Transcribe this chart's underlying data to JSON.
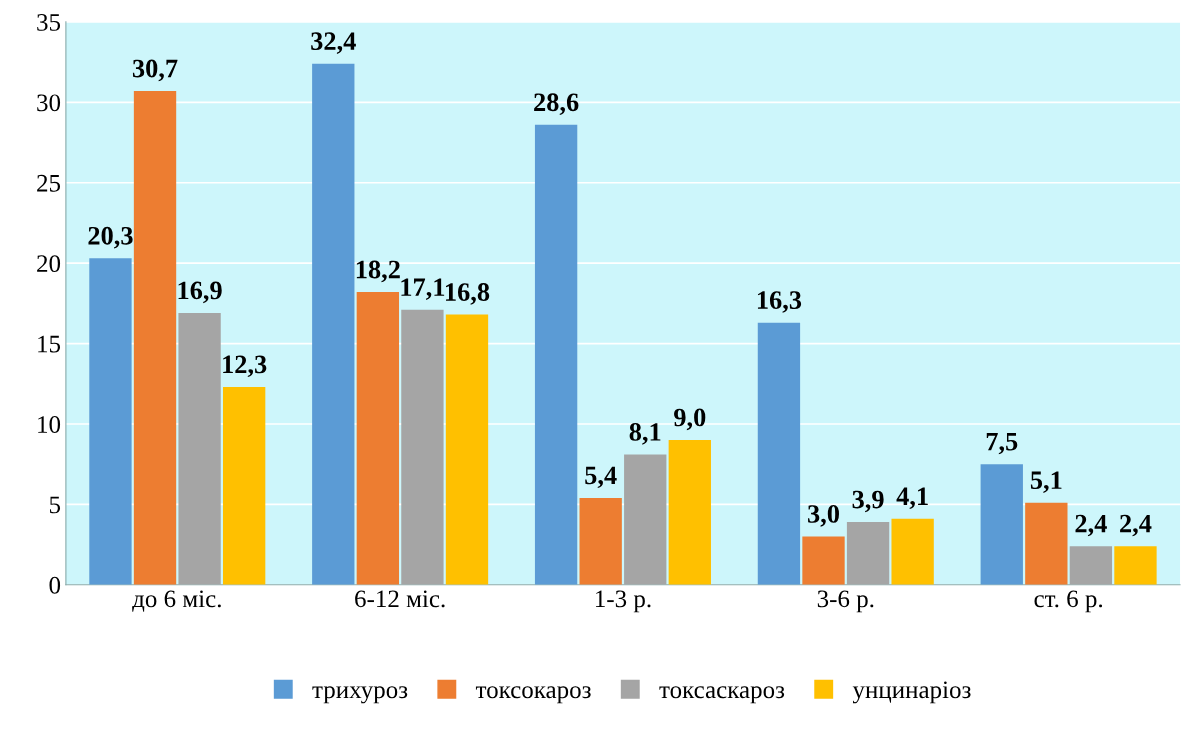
{
  "chart_data": {
    "type": "bar",
    "categories": [
      "до 6 міс.",
      "6-12 міс.",
      "1-3 р.",
      "3-6 р.",
      "ст. 6 р."
    ],
    "series": [
      {
        "name": "трихуроз",
        "color": "#5b9bd5",
        "values": [
          20.3,
          32.4,
          28.6,
          16.3,
          7.5
        ],
        "value_labels": [
          "20,3",
          "32,4",
          "28,6",
          "16,3",
          "7,5"
        ]
      },
      {
        "name": "токсокароз",
        "color": "#ed7d31",
        "values": [
          30.7,
          18.2,
          5.4,
          3.0,
          5.1
        ],
        "value_labels": [
          "30,7",
          "18,2",
          "5,4",
          "3,0",
          "5,1"
        ]
      },
      {
        "name": "токсаскароз",
        "color": "#a5a5a5",
        "values": [
          16.9,
          17.1,
          8.1,
          3.9,
          2.4
        ],
        "value_labels": [
          "16,9",
          "17,1",
          "8,1",
          "3,9",
          "2,4"
        ]
      },
      {
        "name": "унцинаріоз",
        "color": "#ffc000",
        "values": [
          12.3,
          16.8,
          9.0,
          4.1,
          2.4
        ],
        "value_labels": [
          "12,3",
          "16,8",
          "9,0",
          "4,1",
          "2,4"
        ]
      }
    ],
    "ylim": [
      0,
      35
    ],
    "yticks": [
      0,
      5,
      10,
      15,
      20,
      25,
      30,
      35
    ],
    "grid": "y",
    "legend": "bottom"
  }
}
